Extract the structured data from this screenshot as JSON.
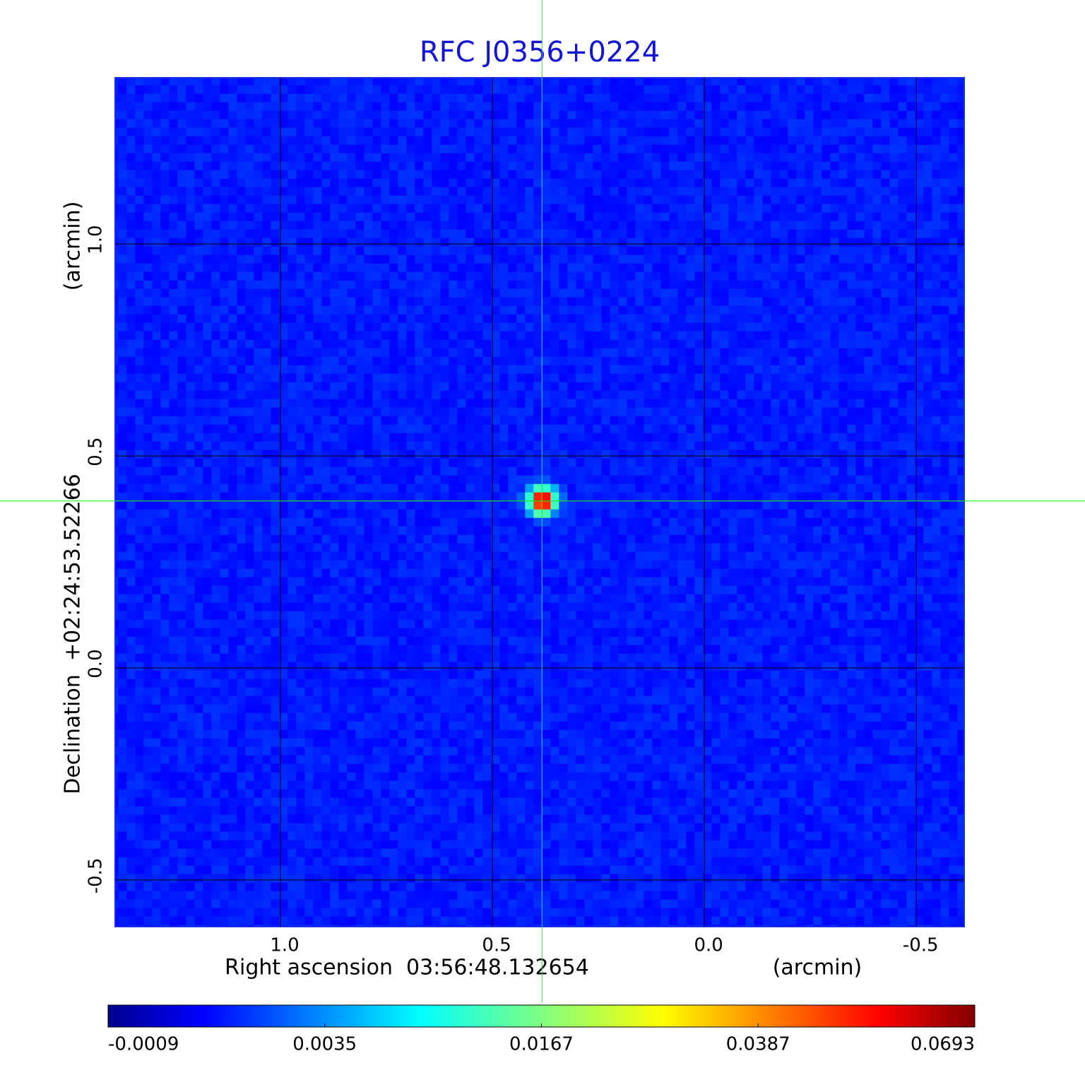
{
  "chart_data": {
    "type": "image",
    "title": "RFC J0356+0224",
    "x_label": "Right ascension  03:56:48.132654",
    "x_unit": "(arcmin)",
    "y_label": "Declination  +02:24:53.52266",
    "y_unit": "(arcmin)",
    "xlim": [
      1.39,
      -0.613
    ],
    "ylim": [
      -0.61,
      1.392
    ],
    "xticks": [
      {
        "value": 1,
        "label": "1.0"
      },
      0.5,
      {
        "value": 0,
        "label": "0.0"
      },
      -0.5
    ],
    "yticks": [
      {
        "value": 1,
        "label": "1.0"
      },
      0.5,
      {
        "value": 0,
        "label": "0.0"
      },
      -0.5
    ],
    "grid": true,
    "colormap": "jet",
    "colorbar_ticks": [
      -0.0009,
      0.0035,
      0.0167,
      0.0387,
      0.0693
    ],
    "source": {
      "x": 0.383,
      "y": 0.394
    },
    "crosshair_color": "#00ff00"
  }
}
